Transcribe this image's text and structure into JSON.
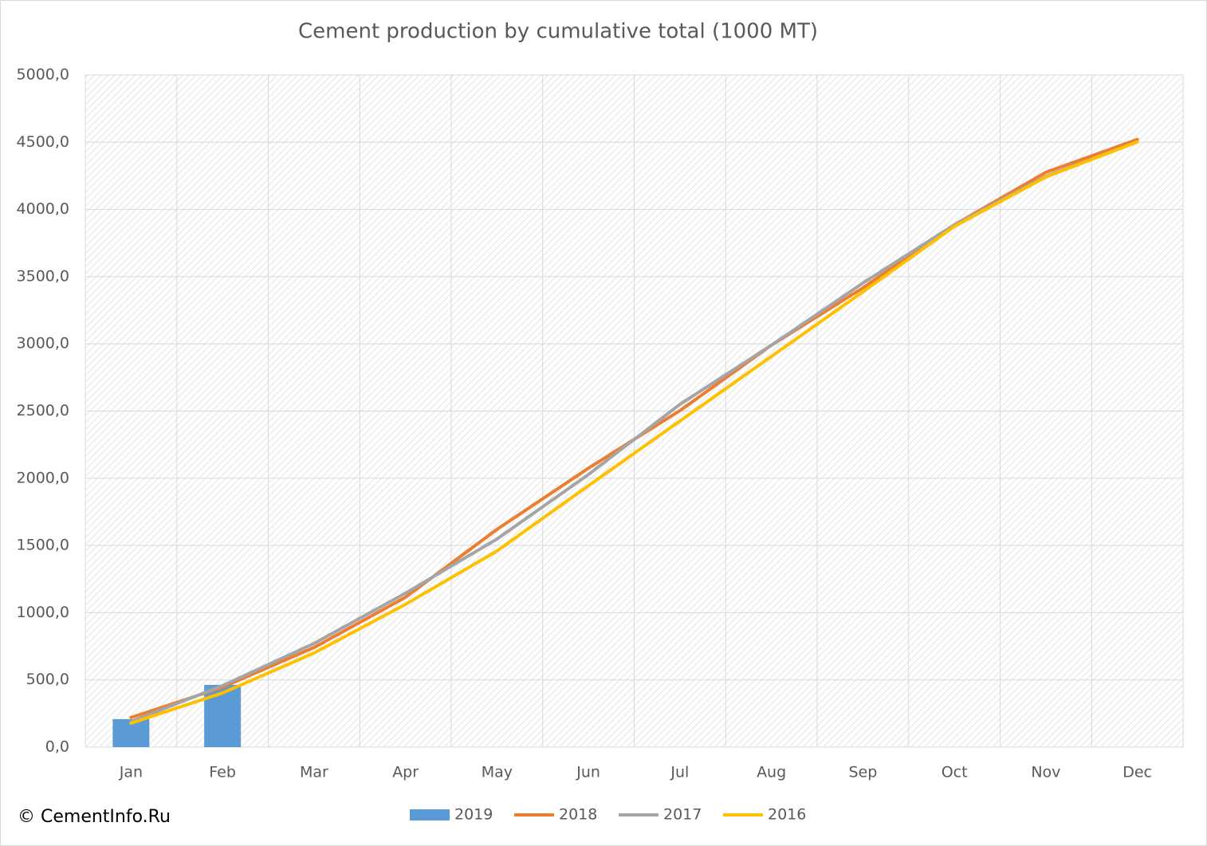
{
  "chart_data": {
    "type": "combo",
    "title": "Cement production by cumulative total (1000 MT)",
    "source": "© CementInfo.Ru",
    "categories": [
      "Jan",
      "Feb",
      "Mar",
      "Apr",
      "May",
      "Jun",
      "Jul",
      "Aug",
      "Sep",
      "Oct",
      "Nov",
      "Dec"
    ],
    "series": [
      {
        "name": "2019",
        "type": "bar",
        "color": "#5b9bd5",
        "values": [
          208,
          463,
          null,
          null,
          null,
          null,
          null,
          null,
          null,
          null,
          null,
          null
        ]
      },
      {
        "name": "2018",
        "type": "line",
        "color": "#ed7d31",
        "values": [
          220,
          445,
          741,
          1115,
          1620,
          2075,
          2503,
          2990,
          3416,
          3885,
          4276,
          4520
        ]
      },
      {
        "name": "2017",
        "type": "line",
        "color": "#a5a5a5",
        "values": [
          190,
          457,
          771,
          1145,
          1548,
          2028,
          2550,
          2990,
          3452,
          3885,
          4247,
          4502
        ]
      },
      {
        "name": "2016",
        "type": "line",
        "color": "#ffc000",
        "values": [
          178,
          403,
          700,
          1062,
          1459,
          1945,
          2426,
          2906,
          3387,
          3873,
          4241,
          4502
        ]
      }
    ],
    "ylim": [
      0,
      5000
    ],
    "yticks": [
      {
        "value": 0,
        "label": "0,0"
      },
      {
        "value": 500,
        "label": "500,0"
      },
      {
        "value": 1000,
        "label": "1000,0"
      },
      {
        "value": 1500,
        "label": "1500,0"
      },
      {
        "value": 2000,
        "label": "2000,0"
      },
      {
        "value": 2500,
        "label": "2500,0"
      },
      {
        "value": 3000,
        "label": "3000,0"
      },
      {
        "value": 3500,
        "label": "3500,0"
      },
      {
        "value": 4000,
        "label": "4000,0"
      },
      {
        "value": 4500,
        "label": "4500,0"
      },
      {
        "value": 5000,
        "label": "5000,0"
      }
    ],
    "grid": true,
    "legend": "bottom"
  }
}
